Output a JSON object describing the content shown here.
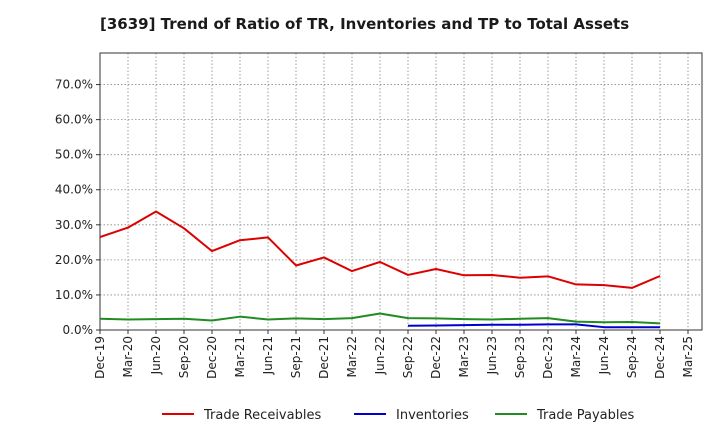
{
  "chart_data": {
    "type": "line",
    "title": "[3639]  Trend of Ratio of TR, Inventories and TP to Total Assets",
    "xlabel": "",
    "ylabel": "",
    "x": [
      "Dec-19",
      "Mar-20",
      "Jun-20",
      "Sep-20",
      "Dec-20",
      "Mar-21",
      "Jun-21",
      "Sep-21",
      "Dec-21",
      "Mar-22",
      "Jun-22",
      "Sep-22",
      "Dec-22",
      "Mar-23",
      "Jun-23",
      "Sep-23",
      "Dec-23",
      "Mar-24",
      "Jun-24",
      "Sep-24",
      "Dec-24",
      "Mar-25"
    ],
    "ylim": [
      0,
      0.79
    ],
    "yticks": [
      0,
      0.1,
      0.2,
      0.3,
      0.4,
      0.5,
      0.6,
      0.7
    ],
    "ytick_labels": [
      "0.0%",
      "10.0%",
      "20.0%",
      "30.0%",
      "40.0%",
      "50.0%",
      "60.0%",
      "70.0%"
    ],
    "grid": true,
    "legend_position": "bottom",
    "series": [
      {
        "name": "Trade Receivables",
        "color": "#dd0000",
        "values": [
          0.265,
          0.292,
          0.338,
          0.29,
          0.225,
          0.256,
          0.264,
          0.184,
          0.207,
          0.168,
          0.194,
          0.157,
          0.174,
          0.156,
          0.157,
          0.149,
          0.153,
          0.13,
          0.128,
          0.12,
          0.154,
          null
        ]
      },
      {
        "name": "Inventories",
        "color": "#0000cc",
        "values": [
          null,
          null,
          null,
          null,
          null,
          null,
          null,
          null,
          null,
          null,
          null,
          0.012,
          0.013,
          0.014,
          0.015,
          0.015,
          0.016,
          0.016,
          0.008,
          0.008,
          0.008,
          null
        ]
      },
      {
        "name": "Trade Payables",
        "color": "#228b22",
        "values": [
          0.032,
          0.03,
          0.031,
          0.032,
          0.027,
          0.038,
          0.03,
          0.033,
          0.031,
          0.034,
          0.047,
          0.034,
          0.033,
          0.031,
          0.03,
          0.032,
          0.034,
          0.024,
          0.022,
          0.023,
          0.019,
          null
        ]
      }
    ]
  }
}
